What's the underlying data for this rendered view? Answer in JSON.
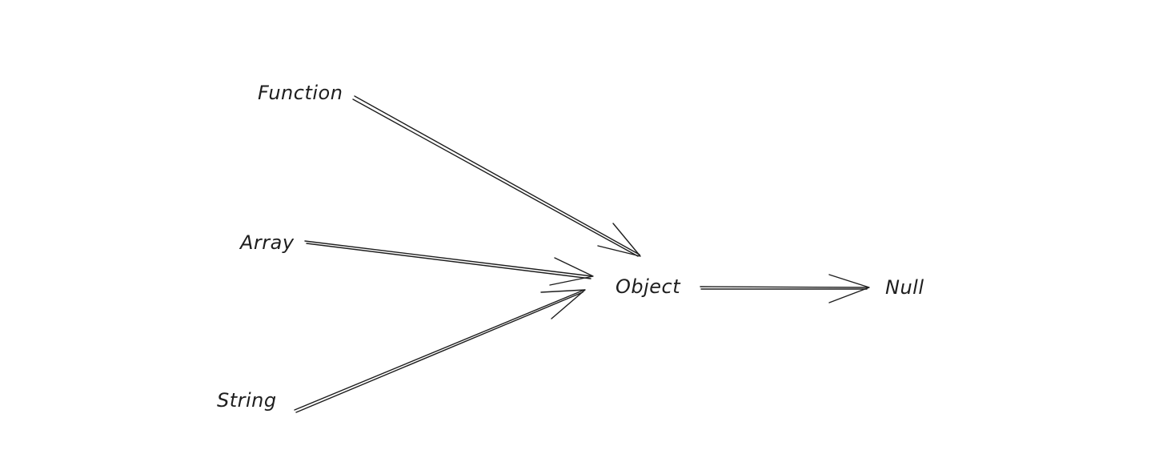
{
  "nodes": {
    "function": {
      "label": "Function"
    },
    "array": {
      "label": "Array"
    },
    "string": {
      "label": "String"
    },
    "object": {
      "label": "Object"
    },
    "null": {
      "label": "Null"
    }
  },
  "edges": [
    {
      "from": "function",
      "to": "object"
    },
    {
      "from": "array",
      "to": "object"
    },
    {
      "from": "string",
      "to": "object"
    },
    {
      "from": "object",
      "to": "null"
    }
  ],
  "colors": {
    "background": "#ffffff",
    "stroke": "#1e1e1e"
  }
}
